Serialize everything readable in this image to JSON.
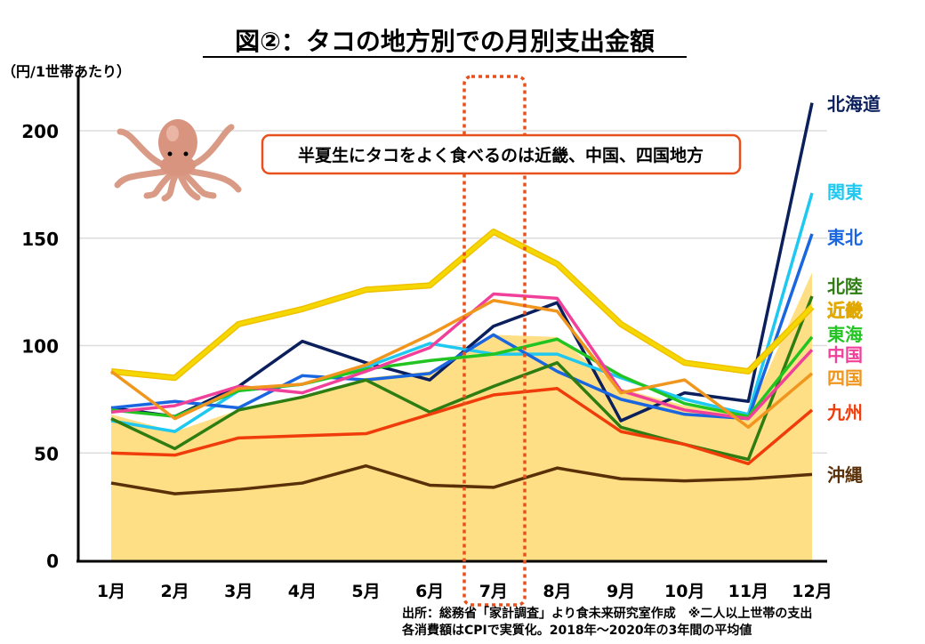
{
  "chart_data": {
    "type": "line",
    "title": "図②：タコの地方別での月別支出金額",
    "ylabel": "（円/1世帯あたり）",
    "xlabel": "",
    "ylim": [
      0,
      220
    ],
    "yticks": [
      0,
      50,
      100,
      150,
      200
    ],
    "grid": true,
    "categories": [
      "1月",
      "2月",
      "3月",
      "4月",
      "5月",
      "6月",
      "7月",
      "8月",
      "9月",
      "10月",
      "11月",
      "12月"
    ],
    "area": {
      "color": "#ffdf85",
      "values": [
        68,
        60,
        70,
        76,
        85,
        88,
        105,
        104,
        80,
        72,
        68,
        134
      ]
    },
    "series": [
      {
        "name": "北海道",
        "color": "#0a1f5c",
        "values": [
          71,
          67,
          81,
          102,
          92,
          84,
          109,
          120,
          65,
          78,
          74,
          213
        ]
      },
      {
        "name": "関東",
        "color": "#1ec8f0",
        "values": [
          65,
          60,
          79,
          82,
          90,
          101,
          96,
          96,
          85,
          75,
          68,
          171
        ]
      },
      {
        "name": "東北",
        "color": "#1a66e0",
        "values": [
          71,
          74,
          71,
          86,
          84,
          87,
          105,
          88,
          75,
          68,
          66,
          152
        ]
      },
      {
        "name": "北陸",
        "color": "#2e7d12",
        "values": [
          66,
          52,
          70,
          76,
          84,
          69,
          81,
          92,
          62,
          54,
          47,
          123
        ]
      },
      {
        "name": "近畿",
        "color": "#f5d800",
        "values": [
          88,
          85,
          110,
          117,
          126,
          128,
          153,
          138,
          110,
          92,
          88,
          118
        ]
      },
      {
        "name": "東海",
        "color": "#22c422",
        "values": [
          70,
          67,
          79,
          82,
          89,
          93,
          96,
          103,
          86,
          73,
          67,
          104
        ]
      },
      {
        "name": "中国",
        "color": "#f0409a",
        "values": [
          69,
          72,
          81,
          78,
          88,
          99,
          124,
          122,
          79,
          70,
          66,
          98
        ]
      },
      {
        "name": "四国",
        "color": "#f0961e",
        "values": [
          88,
          66,
          80,
          82,
          91,
          105,
          121,
          116,
          78,
          84,
          62,
          87
        ]
      },
      {
        "name": "九州",
        "color": "#f03c0a",
        "values": [
          50,
          49,
          57,
          58,
          59,
          68,
          77,
          80,
          60,
          54,
          45,
          70
        ]
      },
      {
        "name": "沖縄",
        "color": "#5a3008",
        "values": [
          36,
          31,
          33,
          36,
          44,
          35,
          34,
          43,
          38,
          37,
          38,
          40
        ]
      }
    ],
    "highlight_category": "7月",
    "annotation": "半夏生にタコをよく食べるのは近畿、中国、四国地方"
  },
  "source": {
    "line1": "出所：総務省「家計調査」より食未来研究室作成　※二人以上世帯の支出",
    "line2": "各消費額はCPIで実質化。2018年～2020年の3年間の平均値"
  },
  "colors": {
    "highlight": "#e8501e",
    "axis": "#000000",
    "grid": "#dddddd"
  }
}
